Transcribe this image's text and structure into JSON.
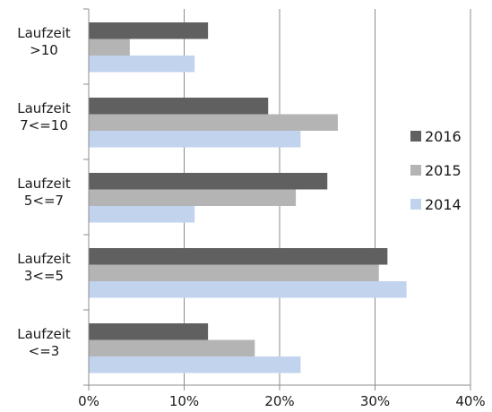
{
  "chart_data": {
    "type": "bar",
    "orientation": "horizontal",
    "categories": [
      [
        "Laufzeit",
        ">10"
      ],
      [
        "Laufzeit",
        "7<=10"
      ],
      [
        "Laufzeit",
        "5<=7"
      ],
      [
        "Laufzeit",
        "3<=5"
      ],
      [
        "Laufzeit",
        "<=3"
      ]
    ],
    "series": [
      {
        "name": "2016",
        "color": "#606060",
        "values": [
          12.5,
          18.8,
          25.0,
          31.3,
          12.5
        ]
      },
      {
        "name": "2015",
        "color": "#b4b4b4",
        "values": [
          4.3,
          26.1,
          21.7,
          30.4,
          17.4
        ]
      },
      {
        "name": "2014",
        "color": "#c2d3ee",
        "values": [
          11.1,
          22.2,
          11.1,
          33.3,
          22.2
        ]
      }
    ],
    "xlim": [
      0,
      40
    ],
    "xticks": [
      "0%",
      "10%",
      "20%",
      "30%",
      "40%"
    ],
    "grid": true,
    "legend_position": "right"
  }
}
